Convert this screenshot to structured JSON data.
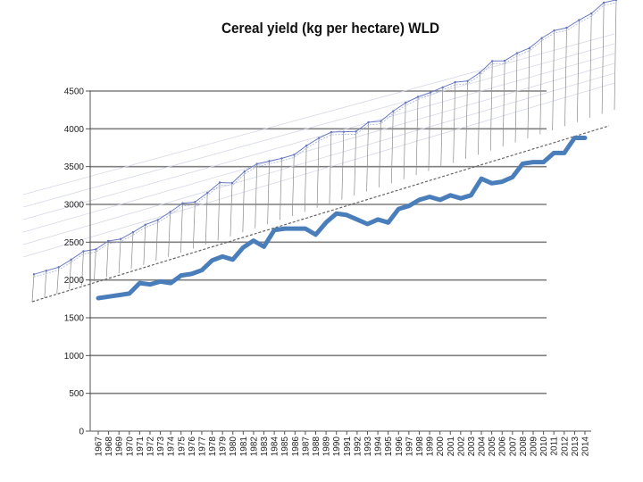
{
  "chart_data": {
    "type": "line",
    "title": "Cereal yield (kg per hectare) WLD",
    "xlabel": "",
    "ylabel": "",
    "ylim": [
      0,
      4500
    ],
    "yticks": [
      0,
      500,
      1000,
      1500,
      2000,
      2500,
      3000,
      3500,
      4000,
      4500
    ],
    "grid": true,
    "legend": "none",
    "x": [
      "1967",
      "1968",
      "1969",
      "1970",
      "1971",
      "1972",
      "1973",
      "1974",
      "1975",
      "1976",
      "1977",
      "1978",
      "1979",
      "1980",
      "1981",
      "1982",
      "1983",
      "1984",
      "1985",
      "1986",
      "1987",
      "1988",
      "1989",
      "1990",
      "1991",
      "1992",
      "1993",
      "1994",
      "1995",
      "1996",
      "1997",
      "1998",
      "1999",
      "2000",
      "2001",
      "2002",
      "2003",
      "2004",
      "2005",
      "2006",
      "2007",
      "2008",
      "2009",
      "2010",
      "2011",
      "2012",
      "2013",
      "2014"
    ],
    "series": [
      {
        "name": "Cereal yield (kg per hectare) WLD",
        "color": "#4a7ebb",
        "values": [
          1760,
          1780,
          1800,
          1820,
          1960,
          1940,
          1980,
          1960,
          2060,
          2080,
          2130,
          2260,
          2310,
          2270,
          2430,
          2520,
          2440,
          2660,
          2680,
          2680,
          2680,
          2600,
          2760,
          2880,
          2860,
          2800,
          2740,
          2800,
          2760,
          2940,
          2980,
          3060,
          3100,
          3060,
          3120,
          3080,
          3120,
          3340,
          3280,
          3300,
          3360,
          3540,
          3560,
          3560,
          3680,
          3680,
          3880,
          3880
        ]
      }
    ]
  }
}
